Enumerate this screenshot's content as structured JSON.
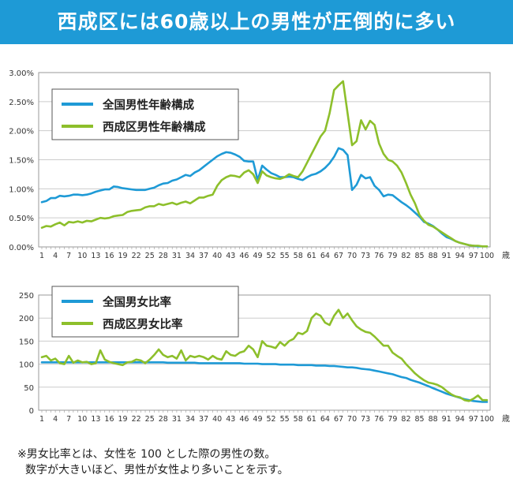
{
  "header": {
    "title": "西成区には60歳以上の男性が圧倒的に多い"
  },
  "notes": {
    "line1": "※男女比率とは、女性を 100 とした際の男性の数。",
    "line2": "数字が大きいほど、男性が女性より多いことを示す。"
  },
  "colors": {
    "header": "#1e9ad6",
    "national": "#1e9ad6",
    "nishinari": "#8dbf2b"
  },
  "x_unit": "歳",
  "x_ticks": [
    "1",
    "4",
    "7",
    "10",
    "13",
    "16",
    "19",
    "22",
    "25",
    "28",
    "31",
    "34",
    "37",
    "40",
    "43",
    "46",
    "49",
    "52",
    "55",
    "58",
    "61",
    "64",
    "67",
    "70",
    "73",
    "76",
    "79",
    "82",
    "85",
    "88",
    "91",
    "94",
    "97",
    "100"
  ],
  "chart_data": [
    {
      "type": "line",
      "title": "",
      "xlabel": "歳",
      "ylabel": "",
      "ylim": [
        0,
        3.0
      ],
      "y_ticks": [
        "0.00%",
        "0.50%",
        "1.00%",
        "1.50%",
        "2.00%",
        "2.50%",
        "3.00%"
      ],
      "legend": "top-left",
      "x": [
        1,
        2,
        3,
        4,
        5,
        6,
        7,
        8,
        9,
        10,
        11,
        12,
        13,
        14,
        15,
        16,
        17,
        18,
        19,
        20,
        21,
        22,
        23,
        24,
        25,
        26,
        27,
        28,
        29,
        30,
        31,
        32,
        33,
        34,
        35,
        36,
        37,
        38,
        39,
        40,
        41,
        42,
        43,
        44,
        45,
        46,
        47,
        48,
        49,
        50,
        51,
        52,
        53,
        54,
        55,
        56,
        57,
        58,
        59,
        60,
        61,
        62,
        63,
        64,
        65,
        66,
        67,
        68,
        69,
        70,
        71,
        72,
        73,
        74,
        75,
        76,
        77,
        78,
        79,
        80,
        81,
        82,
        83,
        84,
        85,
        86,
        87,
        88,
        89,
        90,
        91,
        92,
        93,
        94,
        95,
        96,
        97,
        98,
        99,
        100
      ],
      "series": [
        {
          "name": "全国男性年齢構成",
          "color": "#1e9ad6",
          "values": [
            0.77,
            0.79,
            0.84,
            0.84,
            0.88,
            0.87,
            0.88,
            0.9,
            0.9,
            0.89,
            0.9,
            0.92,
            0.95,
            0.97,
            0.99,
            0.99,
            1.04,
            1.03,
            1.01,
            1.0,
            0.99,
            0.98,
            0.98,
            0.98,
            1.0,
            1.02,
            1.06,
            1.09,
            1.1,
            1.14,
            1.16,
            1.2,
            1.24,
            1.22,
            1.28,
            1.32,
            1.38,
            1.44,
            1.5,
            1.56,
            1.6,
            1.63,
            1.62,
            1.59,
            1.55,
            1.48,
            1.47,
            1.47,
            1.15,
            1.4,
            1.33,
            1.27,
            1.24,
            1.2,
            1.2,
            1.21,
            1.2,
            1.17,
            1.15,
            1.2,
            1.24,
            1.26,
            1.3,
            1.36,
            1.44,
            1.55,
            1.7,
            1.67,
            1.58,
            0.98,
            1.07,
            1.24,
            1.18,
            1.2,
            1.05,
            0.98,
            0.87,
            0.9,
            0.89,
            0.83,
            0.77,
            0.72,
            0.66,
            0.59,
            0.52,
            0.43,
            0.4,
            0.36,
            0.3,
            0.23,
            0.17,
            0.14,
            0.1,
            0.07,
            0.05,
            0.03,
            0.02,
            0.01,
            0.01,
            0.01
          ]
        },
        {
          "name": "西成区男性年齢構成",
          "color": "#8dbf2b",
          "values": [
            0.33,
            0.36,
            0.35,
            0.39,
            0.42,
            0.37,
            0.43,
            0.42,
            0.44,
            0.42,
            0.45,
            0.44,
            0.47,
            0.5,
            0.49,
            0.5,
            0.53,
            0.54,
            0.55,
            0.6,
            0.62,
            0.63,
            0.64,
            0.68,
            0.7,
            0.7,
            0.74,
            0.72,
            0.74,
            0.76,
            0.73,
            0.76,
            0.78,
            0.75,
            0.8,
            0.85,
            0.85,
            0.88,
            0.9,
            1.05,
            1.15,
            1.2,
            1.23,
            1.22,
            1.2,
            1.28,
            1.32,
            1.25,
            1.1,
            1.3,
            1.23,
            1.2,
            1.18,
            1.17,
            1.2,
            1.25,
            1.22,
            1.2,
            1.3,
            1.45,
            1.6,
            1.75,
            1.9,
            2.0,
            2.3,
            2.7,
            2.78,
            2.85,
            2.3,
            1.75,
            1.82,
            2.18,
            2.02,
            2.17,
            2.1,
            1.78,
            1.6,
            1.5,
            1.47,
            1.4,
            1.28,
            1.1,
            0.9,
            0.75,
            0.55,
            0.45,
            0.38,
            0.35,
            0.3,
            0.25,
            0.2,
            0.15,
            0.1,
            0.07,
            0.05,
            0.03,
            0.02,
            0.02,
            0.01,
            0.01
          ]
        }
      ]
    },
    {
      "type": "line",
      "title": "",
      "xlabel": "歳",
      "ylabel": "",
      "ylim": [
        0,
        250
      ],
      "y_ticks": [
        "0",
        "50",
        "100",
        "150",
        "200",
        "250"
      ],
      "legend": "top-left",
      "x": [
        1,
        2,
        3,
        4,
        5,
        6,
        7,
        8,
        9,
        10,
        11,
        12,
        13,
        14,
        15,
        16,
        17,
        18,
        19,
        20,
        21,
        22,
        23,
        24,
        25,
        26,
        27,
        28,
        29,
        30,
        31,
        32,
        33,
        34,
        35,
        36,
        37,
        38,
        39,
        40,
        41,
        42,
        43,
        44,
        45,
        46,
        47,
        48,
        49,
        50,
        51,
        52,
        53,
        54,
        55,
        56,
        57,
        58,
        59,
        60,
        61,
        62,
        63,
        64,
        65,
        66,
        67,
        68,
        69,
        70,
        71,
        72,
        73,
        74,
        75,
        76,
        77,
        78,
        79,
        80,
        81,
        82,
        83,
        84,
        85,
        86,
        87,
        88,
        89,
        90,
        91,
        92,
        93,
        94,
        95,
        96,
        97,
        98,
        99,
        100
      ],
      "series": [
        {
          "name": "全国男女比率",
          "color": "#1e9ad6",
          "values": [
            104,
            104,
            104,
            104,
            104,
            104,
            104,
            104,
            104,
            104,
            104,
            104,
            104,
            104,
            104,
            104,
            104,
            104,
            104,
            104,
            104,
            104,
            104,
            104,
            104,
            104,
            104,
            104,
            103,
            103,
            103,
            103,
            103,
            103,
            103,
            102,
            102,
            102,
            102,
            102,
            102,
            102,
            102,
            102,
            102,
            101,
            101,
            101,
            101,
            100,
            100,
            100,
            100,
            99,
            99,
            99,
            99,
            98,
            98,
            98,
            98,
            97,
            97,
            97,
            96,
            96,
            95,
            94,
            93,
            93,
            92,
            90,
            89,
            88,
            86,
            84,
            82,
            80,
            78,
            75,
            72,
            70,
            66,
            63,
            60,
            56,
            52,
            48,
            44,
            40,
            36,
            33,
            30,
            27,
            24,
            22,
            20,
            19,
            18,
            18
          ]
        },
        {
          "name": "西成区男女比率",
          "color": "#8dbf2b",
          "values": [
            115,
            118,
            108,
            112,
            102,
            100,
            118,
            103,
            108,
            104,
            105,
            100,
            102,
            130,
            110,
            105,
            102,
            100,
            98,
            104,
            105,
            110,
            108,
            102,
            110,
            120,
            132,
            120,
            115,
            118,
            112,
            130,
            108,
            118,
            115,
            118,
            115,
            110,
            118,
            112,
            110,
            128,
            120,
            118,
            125,
            128,
            140,
            132,
            115,
            150,
            140,
            138,
            135,
            148,
            140,
            150,
            155,
            168,
            165,
            172,
            200,
            210,
            205,
            190,
            185,
            205,
            218,
            200,
            210,
            195,
            182,
            175,
            170,
            168,
            160,
            150,
            140,
            140,
            125,
            118,
            112,
            100,
            90,
            80,
            72,
            65,
            60,
            58,
            55,
            50,
            42,
            35,
            30,
            28,
            22,
            20,
            25,
            32,
            22,
            22
          ]
        }
      ]
    }
  ]
}
